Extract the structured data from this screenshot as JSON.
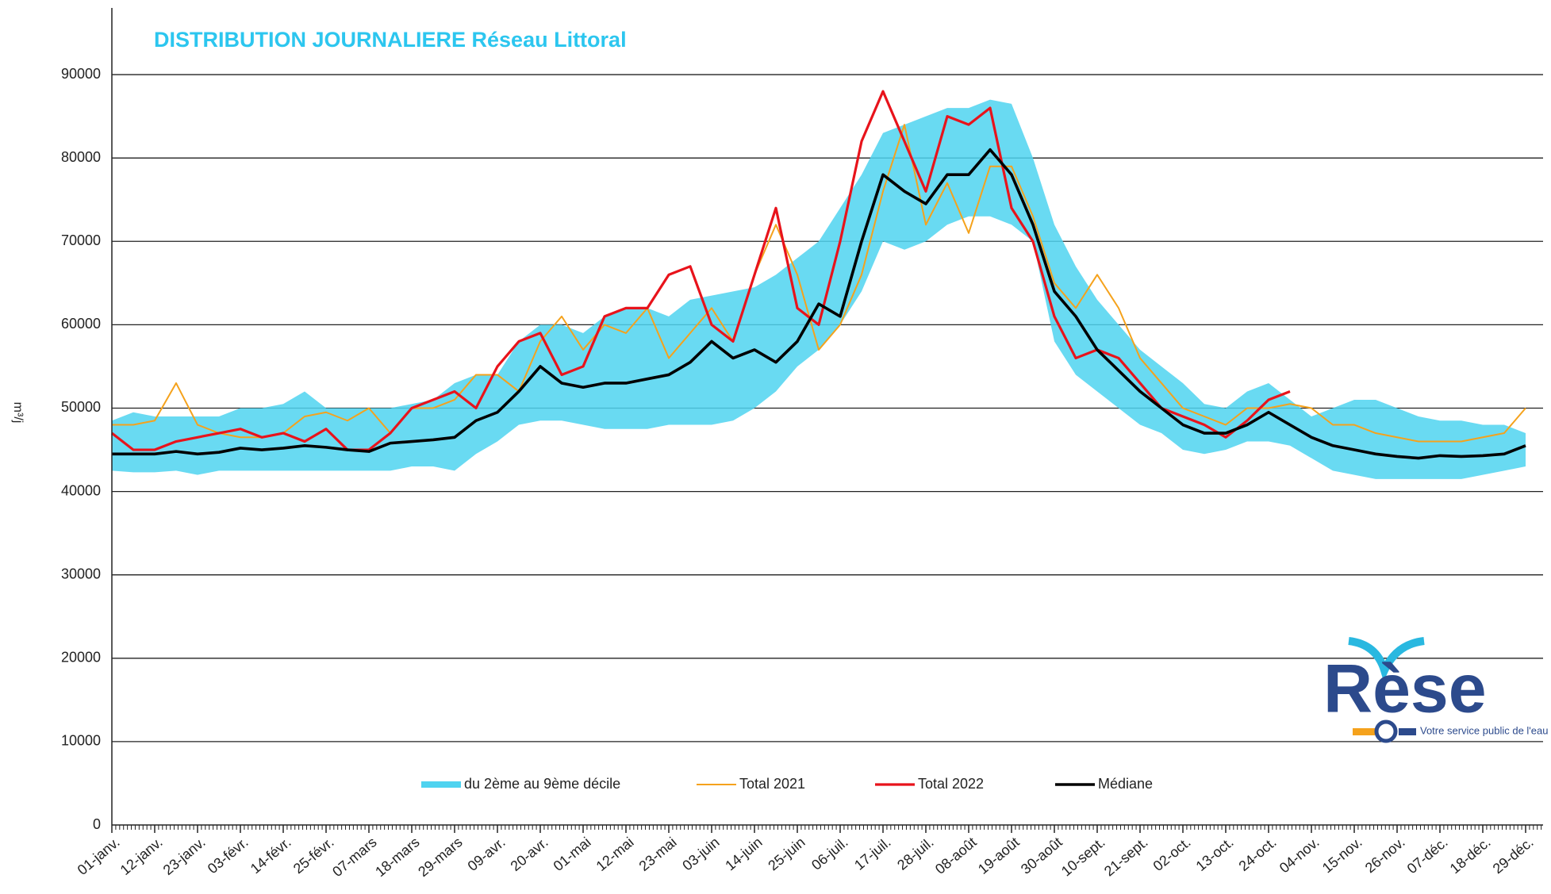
{
  "chart_data": {
    "type": "line",
    "title": "DISTRIBUTION JOURNALIERE Réseau Littoral",
    "y_label": "m³/j",
    "logo": {
      "name": "Rèse",
      "tagline": "Votre service public de l'eau"
    },
    "categories": [
      "01-janv.",
      null,
      "12-janv.",
      null,
      "23-janv.",
      null,
      "03-févr.",
      null,
      "14-févr.",
      null,
      "25-févr.",
      null,
      "07-mars",
      null,
      "18-mars",
      null,
      "29-mars",
      null,
      "09-avr.",
      null,
      "20-avr.",
      null,
      "01-mai",
      null,
      "12-mai",
      null,
      "23-mai",
      null,
      "03-juin",
      null,
      "14-juin",
      null,
      "25-juin",
      null,
      "06-juil.",
      null,
      "17-juil.",
      null,
      "28-juil.",
      null,
      "08-août",
      null,
      "19-août",
      null,
      "30-août",
      null,
      "10-sept.",
      null,
      "21-sept.",
      null,
      "02-oct.",
      null,
      "13-oct.",
      null,
      "24-oct.",
      null,
      "04-nov.",
      null,
      "15-nov.",
      null,
      "26-nov.",
      null,
      "07-déc.",
      null,
      "18-déc.",
      null,
      "29-déc."
    ],
    "band": {
      "name": "du 2ème au 9ème décile",
      "color": "#4fd3f0",
      "low": [
        42500,
        42300,
        42300,
        42500,
        42000,
        42500,
        42500,
        42500,
        42500,
        42500,
        42500,
        42500,
        42500,
        42500,
        43000,
        43000,
        42500,
        44500,
        46000,
        48000,
        48500,
        48500,
        48000,
        47500,
        47500,
        47500,
        48000,
        48000,
        48000,
        48500,
        50000,
        52000,
        55000,
        57000,
        60000,
        64000,
        70000,
        69000,
        70000,
        72000,
        73000,
        73000,
        72000,
        70000,
        58000,
        54000,
        52000,
        50000,
        48000,
        47000,
        45000,
        44500,
        45000,
        46000,
        46000,
        45500,
        44000,
        42500,
        42000,
        41500,
        41500,
        41500,
        41500,
        41500,
        42000,
        42500,
        43000
      ],
      "high": [
        48500,
        49500,
        49000,
        49000,
        49000,
        49000,
        50000,
        50000,
        50500,
        52000,
        50000,
        50000,
        50000,
        50000,
        50500,
        51000,
        53000,
        54000,
        54000,
        58000,
        60000,
        60000,
        59000,
        61000,
        62000,
        62000,
        61000,
        63000,
        63500,
        64000,
        64500,
        66000,
        68000,
        70000,
        74000,
        78000,
        83000,
        84000,
        85000,
        86000,
        86000,
        87000,
        86500,
        80000,
        72000,
        67000,
        63000,
        60000,
        57000,
        55000,
        53000,
        50500,
        50000,
        52000,
        53000,
        51000,
        49000,
        50000,
        51000,
        51000,
        50000,
        49000,
        48500,
        48500,
        48000,
        48000,
        47000
      ]
    },
    "series": [
      {
        "name": "Total 2021",
        "color": "#f5a21c",
        "width": 2,
        "values": [
          48000,
          48000,
          48500,
          53000,
          48000,
          47000,
          46500,
          46500,
          47000,
          49000,
          49500,
          48500,
          50000,
          47000,
          50000,
          50000,
          51000,
          54000,
          54000,
          52000,
          58000,
          61000,
          57000,
          60000,
          59000,
          62000,
          56000,
          59000,
          62000,
          58000,
          66000,
          72000,
          66000,
          57000,
          60000,
          66000,
          76000,
          84000,
          72000,
          77000,
          71000,
          79000,
          79000,
          73000,
          65000,
          62000,
          66000,
          62000,
          56000,
          53000,
          50000,
          49000,
          48000,
          50000,
          50000,
          50500,
          50000,
          48000,
          48000,
          47000,
          46500,
          46000,
          46000,
          46000,
          46500,
          47000,
          50000
        ]
      },
      {
        "name": "Total 2022",
        "color": "#e8131b",
        "width": 3.2,
        "values": [
          47000,
          45000,
          45000,
          46000,
          46500,
          47000,
          47500,
          46500,
          47000,
          46000,
          47500,
          45000,
          45000,
          47000,
          50000,
          51000,
          52000,
          50000,
          55000,
          58000,
          59000,
          54000,
          55000,
          61000,
          62000,
          62000,
          66000,
          67000,
          60000,
          58000,
          66000,
          74000,
          62000,
          60000,
          70000,
          82000,
          88000,
          82000,
          76000,
          85000,
          84000,
          86000,
          74000,
          70000,
          61000,
          56000,
          57000,
          56000,
          53000,
          50000,
          49000,
          48000,
          46500,
          48500,
          51000,
          52000,
          null,
          null,
          null,
          null,
          null,
          null,
          null,
          null,
          null,
          null,
          null
        ]
      },
      {
        "name": "Médiane",
        "color": "#000000",
        "width": 3.6,
        "values": [
          44500,
          44500,
          44500,
          44800,
          44500,
          44700,
          45200,
          45000,
          45200,
          45500,
          45300,
          45000,
          44800,
          45800,
          46000,
          46200,
          46500,
          48500,
          49500,
          52000,
          55000,
          53000,
          52500,
          53000,
          53000,
          53500,
          54000,
          55500,
          58000,
          56000,
          57000,
          55500,
          58000,
          62500,
          61000,
          70000,
          78000,
          76000,
          74500,
          78000,
          78000,
          81000,
          78000,
          72000,
          64000,
          61000,
          57000,
          54500,
          52000,
          50000,
          48000,
          47000,
          47000,
          48000,
          49500,
          48000,
          46500,
          45500,
          45000,
          44500,
          44200,
          44000,
          44300,
          44200,
          44300,
          44500,
          45500
        ]
      }
    ],
    "ylim": [
      0,
      98000
    ],
    "yticks": [
      0,
      10000,
      20000,
      30000,
      40000,
      50000,
      60000,
      70000,
      80000,
      90000
    ],
    "grid": true
  }
}
